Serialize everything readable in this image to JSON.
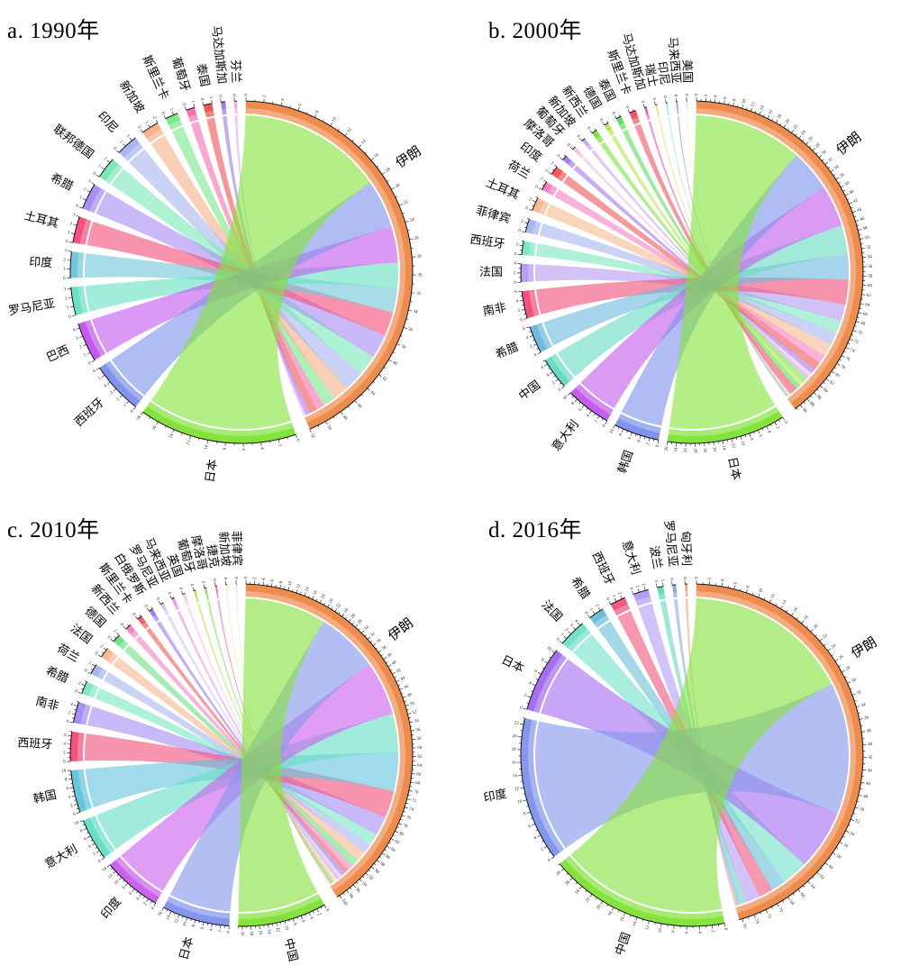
{
  "page": {
    "background": "#ffffff"
  },
  "panels": [
    {
      "title": "a. 1990年"
    },
    {
      "title": "b. 2000年"
    },
    {
      "title": "c. 2010年"
    },
    {
      "title": "d. 2016年"
    }
  ],
  "chart_data": [
    {
      "type": "chord",
      "title": "a. 1990年",
      "legend_position": "none",
      "grid": false,
      "axis": {
        "tick_unit": 1,
        "label_every_for_large": 2
      },
      "center": {
        "name": "伊朗",
        "color": "#ee8c4e",
        "total": 52.0
      },
      "partners": [
        {
          "name": "芬兰",
          "value": 0.3,
          "color": "#f0a0ee"
        },
        {
          "name": "马达加斯加",
          "value": 0.5,
          "color": "#9d7bf2"
        },
        {
          "name": "泰国",
          "value": 1.0,
          "color": "#f25555"
        },
        {
          "name": "葡萄牙",
          "value": 1.0,
          "color": "#f472b2"
        },
        {
          "name": "斯里兰卡",
          "value": 1.5,
          "color": "#7de98c"
        },
        {
          "name": "新加坡",
          "value": 2.0,
          "color": "#f6b28a"
        },
        {
          "name": "印尼",
          "value": 2.5,
          "color": "#aab6f0"
        },
        {
          "name": "联邦德国",
          "value": 2.5,
          "color": "#7ce9bb"
        },
        {
          "name": "希腊",
          "value": 3.0,
          "color": "#a88ef5"
        },
        {
          "name": "土耳其",
          "value": 3.0,
          "color": "#f4517c"
        },
        {
          "name": "印度",
          "value": 3.0,
          "color": "#72c8d8"
        },
        {
          "name": "罗马尼亚",
          "value": 3.2,
          "color": "#68e2c4"
        },
        {
          "name": "巴西",
          "value": 4.5,
          "color": "#c558ee"
        },
        {
          "name": "西班牙",
          "value": 6.0,
          "color": "#8094ec"
        },
        {
          "name": "日本",
          "value": 18.0,
          "color": "#84e33c"
        }
      ]
    },
    {
      "type": "chord",
      "title": "b. 2000年",
      "legend_position": "none",
      "grid": false,
      "axis": {
        "tick_unit": 1,
        "label_every_for_large": 2
      },
      "center": {
        "name": "伊朗",
        "color": "#ee8c4e",
        "total": 91.7
      },
      "partners": [
        {
          "name": "美国",
          "value": 0.2,
          "color": "#e6f0a6"
        },
        {
          "name": "马来西亚",
          "value": 0.3,
          "color": "#a487f2"
        },
        {
          "name": "印尼",
          "value": 0.3,
          "color": "#86e2f0"
        },
        {
          "name": "瑞士",
          "value": 0.4,
          "color": "#eee36a"
        },
        {
          "name": "马达加斯加",
          "value": 0.5,
          "color": "#f153b4"
        },
        {
          "name": "斯里兰卡",
          "value": 1.5,
          "color": "#f25563"
        },
        {
          "name": "泰国",
          "value": 1.2,
          "color": "#5cdf5c"
        },
        {
          "name": "德国",
          "value": 1.0,
          "color": "#b2e94a"
        },
        {
          "name": "新西兰",
          "value": 1.2,
          "color": "#7fe348"
        },
        {
          "name": "新加坡",
          "value": 0.8,
          "color": "#c9a6f5"
        },
        {
          "name": "葡萄牙",
          "value": 0.8,
          "color": "#f6c3e4"
        },
        {
          "name": "摩洛哥",
          "value": 1.2,
          "color": "#a47ef2"
        },
        {
          "name": "印度",
          "value": 2.0,
          "color": "#f15b5b"
        },
        {
          "name": "荷兰",
          "value": 2.0,
          "color": "#f783c4"
        },
        {
          "name": "土耳其",
          "value": 3.0,
          "color": "#f6bb92"
        },
        {
          "name": "菲律宾",
          "value": 3.0,
          "color": "#aab6f0"
        },
        {
          "name": "西班牙",
          "value": 3.0,
          "color": "#7de9c0"
        },
        {
          "name": "法国",
          "value": 4.0,
          "color": "#b79cf4"
        },
        {
          "name": "南非",
          "value": 6.0,
          "color": "#f2527a"
        },
        {
          "name": "希腊",
          "value": 6.0,
          "color": "#6fb9dd"
        },
        {
          "name": "中国",
          "value": 7.0,
          "color": "#6adcc4"
        },
        {
          "name": "意大利",
          "value": 10.0,
          "color": "#c45fea"
        },
        {
          "name": "韩国",
          "value": 10.0,
          "color": "#8094ec"
        },
        {
          "name": "日本",
          "value": 26.0,
          "color": "#84e33c"
        }
      ]
    },
    {
      "type": "chord",
      "title": "c. 2010年",
      "legend_position": "none",
      "grid": false,
      "axis": {
        "tick_unit": 1,
        "label_every_for_large": 2
      },
      "center": {
        "name": "伊朗",
        "color": "#ee8c4e",
        "total": 100.7
      },
      "partners": [
        {
          "name": "菲律宾",
          "value": 0.2,
          "color": "#c4f0c0"
        },
        {
          "name": "新加坡",
          "value": 0.3,
          "color": "#f2e9a2"
        },
        {
          "name": "捷克",
          "value": 0.4,
          "color": "#f06cab"
        },
        {
          "name": "摩洛哥",
          "value": 0.5,
          "color": "#7ce360"
        },
        {
          "name": "葡萄牙",
          "value": 0.5,
          "color": "#b4e94e"
        },
        {
          "name": "英国",
          "value": 0.6,
          "color": "#f8c8e8"
        },
        {
          "name": "马来西亚",
          "value": 0.7,
          "color": "#ee90ee"
        },
        {
          "name": "罗马尼亚",
          "value": 0.8,
          "color": "#c3cdf5"
        },
        {
          "name": "白俄罗斯",
          "value": 1.0,
          "color": "#a07cf2"
        },
        {
          "name": "斯里兰卡",
          "value": 1.2,
          "color": "#f26060"
        },
        {
          "name": "新西兰",
          "value": 1.5,
          "color": "#f584c2"
        },
        {
          "name": "德国",
          "value": 2.0,
          "color": "#6fe286"
        },
        {
          "name": "法国",
          "value": 2.5,
          "color": "#f6b992"
        },
        {
          "name": "荷兰",
          "value": 2.5,
          "color": "#aab6f0"
        },
        {
          "name": "希腊",
          "value": 3.0,
          "color": "#7de9c4"
        },
        {
          "name": "南非",
          "value": 5.0,
          "color": "#a78ef3"
        },
        {
          "name": "西班牙",
          "value": 7.0,
          "color": "#f2527c"
        },
        {
          "name": "韩国",
          "value": 10.0,
          "color": "#66c4de"
        },
        {
          "name": "意大利",
          "value": 10.0,
          "color": "#68dfc8"
        },
        {
          "name": "印度",
          "value": 14.0,
          "color": "#cb63ec"
        },
        {
          "name": "日本",
          "value": 16.0,
          "color": "#8497ec"
        },
        {
          "name": "中国",
          "value": 21.0,
          "color": "#86e23e"
        }
      ]
    },
    {
      "type": "chord",
      "title": "d. 2016年",
      "legend_position": "none",
      "grid": false,
      "axis": {
        "tick_unit": 1,
        "label_every_for_large": 2
      },
      "center": {
        "name": "伊朗",
        "color": "#ee8c4e",
        "total": 77.0
      },
      "partners": [
        {
          "name": "匈牙利",
          "value": 0.4,
          "color": "#f2a878"
        },
        {
          "name": "罗马尼亚",
          "value": 0.6,
          "color": "#8ea6f0"
        },
        {
          "name": "波兰",
          "value": 1.0,
          "color": "#66d8c0"
        },
        {
          "name": "意大利",
          "value": 2.5,
          "color": "#b49df5"
        },
        {
          "name": "西班牙",
          "value": 2.5,
          "color": "#f1597e"
        },
        {
          "name": "希腊",
          "value": 2.5,
          "color": "#6ec0d8"
        },
        {
          "name": "法国",
          "value": 4.5,
          "color": "#72e2c8"
        },
        {
          "name": "日本",
          "value": 10.5,
          "color": "#a66ef0"
        },
        {
          "name": "印度",
          "value": 23.0,
          "color": "#8497ec"
        },
        {
          "name": "中国",
          "value": 29.0,
          "color": "#86e23e"
        }
      ]
    }
  ]
}
